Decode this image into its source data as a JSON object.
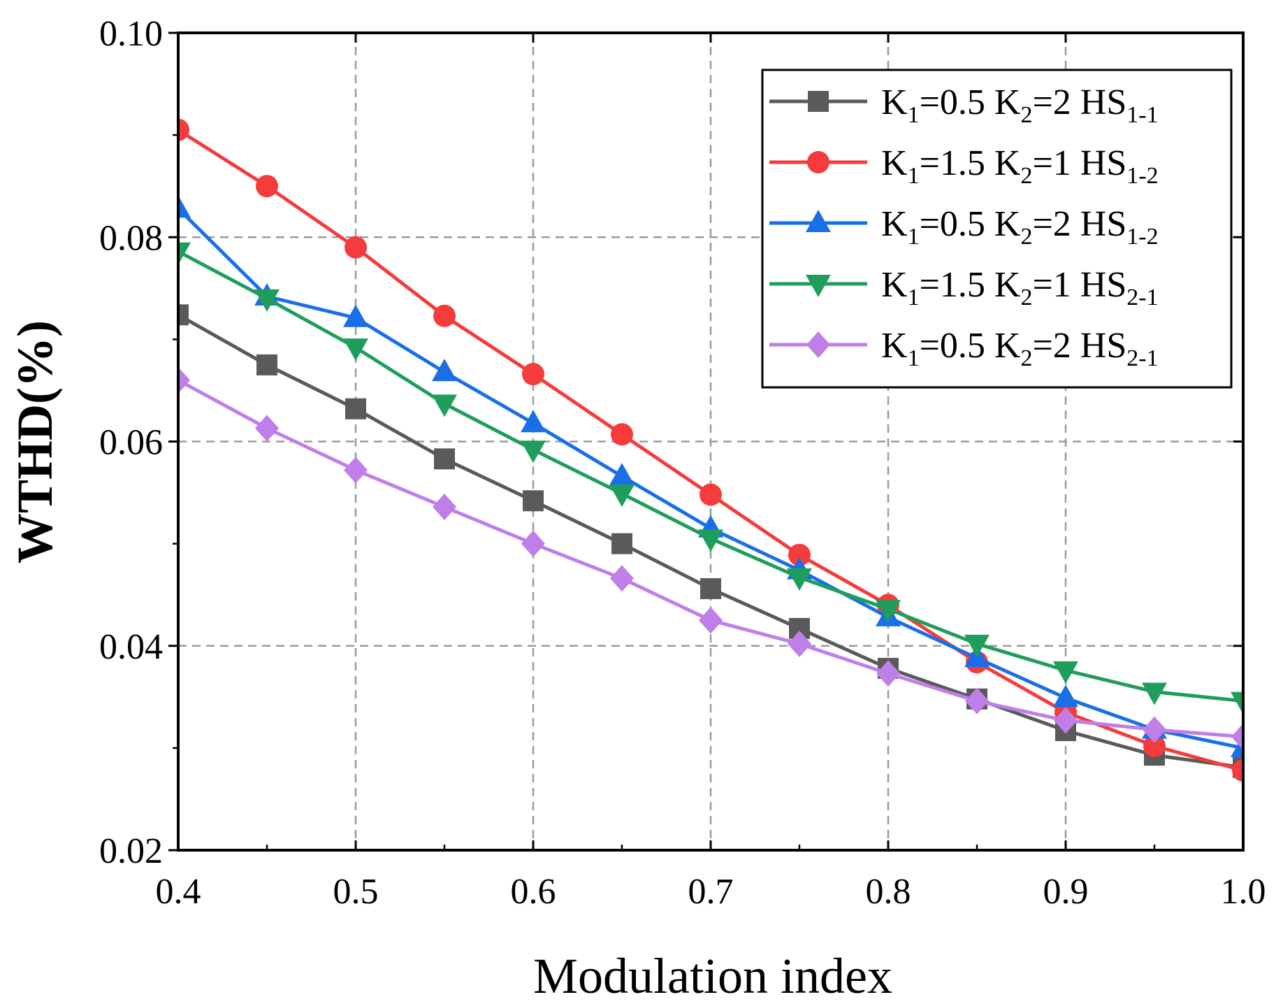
{
  "chart_data": {
    "type": "line",
    "xlabel": "Modulation index",
    "ylabel": "WTHD(%)",
    "xlim": [
      0.4,
      1.0
    ],
    "ylim": [
      0.02,
      0.1
    ],
    "x_ticks": [
      "0.4",
      "0.5",
      "0.6",
      "0.7",
      "0.8",
      "0.9",
      "1.0"
    ],
    "y_ticks": [
      "0.02",
      "0.04",
      "0.06",
      "0.08",
      "0.10"
    ],
    "grid": true,
    "legend_position": "top-right",
    "x": [
      0.4,
      0.45,
      0.5,
      0.55,
      0.6,
      0.65,
      0.7,
      0.75,
      0.8,
      0.85,
      0.9,
      0.95,
      1.0
    ],
    "series": [
      {
        "legend": {
          "k1": "K",
          "k1_sub": "1",
          "k1_val": "=0.5 K",
          "k2_sub": "2",
          "k2_val": "=2 HS",
          "hs_sub": "1-1"
        },
        "color": "#5a5a5a",
        "marker": "square",
        "values": [
          0.0724,
          0.0675,
          0.0632,
          0.0583,
          0.0542,
          0.05,
          0.0456,
          0.0417,
          0.0378,
          0.0348,
          0.0317,
          0.0293,
          0.0281
        ]
      },
      {
        "legend": {
          "k1": "K",
          "k1_sub": "1",
          "k1_val": "=1.5 K",
          "k2_sub": "2",
          "k2_val": "=1 HS",
          "hs_sub": "1-2"
        },
        "color": "#f53b3b",
        "marker": "circle",
        "values": [
          0.0905,
          0.085,
          0.079,
          0.0723,
          0.0666,
          0.0607,
          0.0548,
          0.0489,
          0.044,
          0.0384,
          0.0335,
          0.0302,
          0.0278
        ]
      },
      {
        "legend": {
          "k1": "K",
          "k1_sub": "1",
          "k1_val": "=0.5 K",
          "k2_sub": "2",
          "k2_val": "=2 HS",
          "hs_sub": "1-2"
        },
        "color": "#1a6fe8",
        "marker": "triangle-up",
        "values": [
          0.0828,
          0.0742,
          0.0721,
          0.0668,
          0.0618,
          0.0566,
          0.0515,
          0.0474,
          0.0428,
          0.0388,
          0.0349,
          0.0318,
          0.03
        ]
      },
      {
        "legend": {
          "k1": "K",
          "k1_sub": "1",
          "k1_val": "=1.5 K",
          "k2_sub": "2",
          "k2_val": "=1 HS",
          "hs_sub": "2-1"
        },
        "color": "#1e9e5a",
        "marker": "triangle-down",
        "values": [
          0.0786,
          0.074,
          0.0692,
          0.0637,
          0.0592,
          0.0549,
          0.0505,
          0.0467,
          0.0436,
          0.0402,
          0.0376,
          0.0355,
          0.0346
        ]
      },
      {
        "legend": {
          "k1": "K",
          "k1_sub": "1",
          "k1_val": "=0.5 K",
          "k2_sub": "2",
          "k2_val": "=2 HS",
          "hs_sub": "2-1"
        },
        "color": "#c07ee8",
        "marker": "diamond",
        "values": [
          0.066,
          0.0613,
          0.0572,
          0.0536,
          0.05,
          0.0466,
          0.0425,
          0.0402,
          0.0373,
          0.0346,
          0.0327,
          0.0318,
          0.0311
        ]
      }
    ]
  }
}
